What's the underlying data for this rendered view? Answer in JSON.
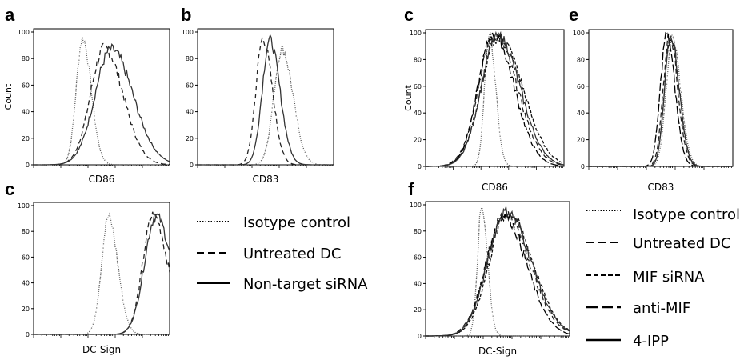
{
  "chart_data": [
    {
      "panel": "a",
      "type": "line",
      "xlabel": "CD86",
      "ylabel": "Count",
      "ylim": [
        0,
        100
      ],
      "yticks": [
        "0",
        "20",
        "40",
        "60",
        "80",
        "100"
      ],
      "grid": false,
      "x_scale": "log",
      "series": [
        {
          "style": "dotted",
          "peak_x": 0.36,
          "peak_y": 95,
          "width": 0.055
        },
        {
          "style": "dashed",
          "peak_x": 0.52,
          "peak_y": 88,
          "width": 0.12
        },
        {
          "style": "solid",
          "peak_x": 0.57,
          "peak_y": 87,
          "width": 0.14
        }
      ]
    },
    {
      "panel": "b",
      "type": "line",
      "xlabel": "CD83",
      "ylabel": "",
      "ylim": [
        0,
        100
      ],
      "yticks": [
        "0",
        "20",
        "40",
        "60",
        "80",
        "100"
      ],
      "grid": false,
      "x_scale": "log",
      "series": [
        {
          "style": "dotted",
          "peak_x": 0.62,
          "peak_y": 87,
          "width": 0.07
        },
        {
          "style": "dashed",
          "peak_x": 0.48,
          "peak_y": 95,
          "width": 0.06
        },
        {
          "style": "solid",
          "peak_x": 0.53,
          "peak_y": 94,
          "width": 0.065
        }
      ]
    },
    {
      "panel": "c",
      "type": "line",
      "xlabel": "DC-Sign",
      "ylabel": "",
      "ylim": [
        0,
        100
      ],
      "yticks": [
        "0",
        "20",
        "40",
        "60",
        "80",
        "100"
      ],
      "grid": false,
      "x_scale": "log",
      "series": [
        {
          "style": "dotted",
          "peak_x": 0.55,
          "peak_y": 91,
          "width": 0.06
        },
        {
          "style": "dashed",
          "peak_x": 0.88,
          "peak_y": 93,
          "width": 0.09
        },
        {
          "style": "solid",
          "peak_x": 0.9,
          "peak_y": 92,
          "width": 0.1
        }
      ]
    },
    {
      "panel": "c",
      "type": "line",
      "xlabel": "CD86",
      "ylabel": "Count",
      "ylim": [
        0,
        100
      ],
      "yticks": [
        "0",
        "20",
        "40",
        "60",
        "80",
        "100"
      ],
      "grid": false,
      "x_scale": "log",
      "series": [
        {
          "style": "dotted",
          "peak_x": 0.46,
          "peak_y": 99,
          "width": 0.04
        },
        {
          "style": "dashed",
          "peak_x": 0.5,
          "peak_y": 98,
          "width": 0.14
        },
        {
          "style": "shortdash",
          "peak_x": 0.53,
          "peak_y": 97,
          "width": 0.15
        },
        {
          "style": "longdash",
          "peak_x": 0.49,
          "peak_y": 99,
          "width": 0.13
        },
        {
          "style": "solid",
          "peak_x": 0.52,
          "peak_y": 98,
          "width": 0.14
        }
      ]
    },
    {
      "panel": "e",
      "type": "line",
      "xlabel": "CD83",
      "ylabel": "",
      "ylim": [
        0,
        100
      ],
      "yticks": [
        "0",
        "20",
        "40",
        "60",
        "80",
        "100"
      ],
      "grid": false,
      "x_scale": "log",
      "series": [
        {
          "style": "dotted",
          "peak_x": 0.58,
          "peak_y": 96,
          "width": 0.05
        },
        {
          "style": "dashed",
          "peak_x": 0.56,
          "peak_y": 99,
          "width": 0.05
        },
        {
          "style": "shortdash",
          "peak_x": 0.57,
          "peak_y": 98,
          "width": 0.05
        },
        {
          "style": "longdash",
          "peak_x": 0.54,
          "peak_y": 99,
          "width": 0.05
        },
        {
          "style": "solid",
          "peak_x": 0.57,
          "peak_y": 97,
          "width": 0.05
        }
      ]
    },
    {
      "panel": "f",
      "type": "line",
      "xlabel": "DC-Sign",
      "ylabel": "",
      "ylim": [
        0,
        100
      ],
      "yticks": [
        "0",
        "20",
        "40",
        "60",
        "80",
        "100"
      ],
      "grid": false,
      "x_scale": "log",
      "series": [
        {
          "style": "dotted",
          "peak_x": 0.39,
          "peak_y": 99,
          "width": 0.035
        },
        {
          "style": "dashed",
          "peak_x": 0.55,
          "peak_y": 93,
          "width": 0.15
        },
        {
          "style": "shortdash",
          "peak_x": 0.57,
          "peak_y": 94,
          "width": 0.15
        },
        {
          "style": "longdash",
          "peak_x": 0.54,
          "peak_y": 92,
          "width": 0.14
        },
        {
          "style": "solid",
          "peak_x": 0.56,
          "peak_y": 95,
          "width": 0.15
        }
      ]
    }
  ],
  "panel_letters": [
    "a",
    "b",
    "c",
    "c",
    "e",
    "f"
  ],
  "legend_left": [
    {
      "style": "dotted",
      "label": "Isotype control"
    },
    {
      "style": "dashed",
      "label": "Untreated DC"
    },
    {
      "style": "solid",
      "label": "Non-target siRNA"
    }
  ],
  "legend_right": [
    {
      "style": "dotted",
      "label": "Isotype control"
    },
    {
      "style": "dashed",
      "label": "Untreated DC"
    },
    {
      "style": "shortdash",
      "label": "MIF siRNA"
    },
    {
      "style": "longdash",
      "label": "anti-MIF"
    },
    {
      "style": "solid",
      "label": "4-IPP"
    }
  ]
}
